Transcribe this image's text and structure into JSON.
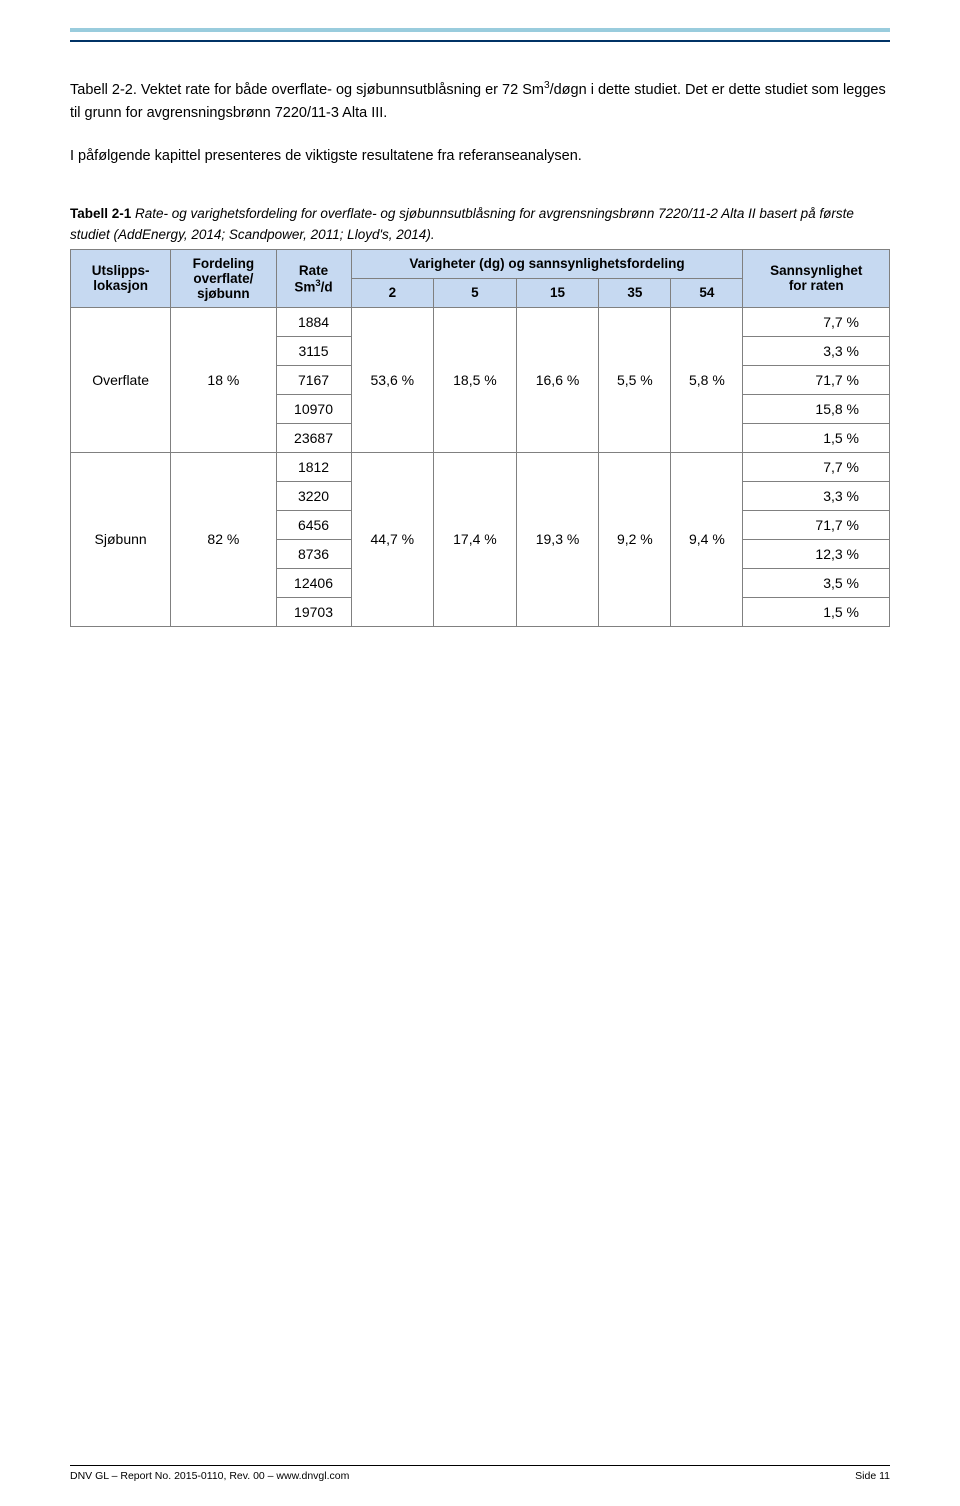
{
  "colors": {
    "header_top_rule": "#99ccdd",
    "header_bottom_rule": "#003366",
    "table_border": "#808080",
    "table_header_bg": "#c6d9f1",
    "text": "#000000",
    "background": "#ffffff"
  },
  "paragraphs": {
    "p1_a": "Tabell 2-2. Vektet rate for både overflate- og sjøbunnsutblåsning er 72 Sm",
    "p1_sup": "3",
    "p1_b": "/døgn i dette studiet. Det er dette studiet som legges til grunn for avgrensningsbrønn 7220/11-3 Alta III.",
    "p2": "I påfølgende kapittel presenteres de viktigste resultatene fra referanseanalysen."
  },
  "caption": {
    "bold": "Tabell 2-1",
    "italic": " Rate- og varighetsfordeling for overflate- og sjøbunnsutblåsning for avgrensningsbrønn 7220/11-2 Alta II basert på første studiet (AddEnergy, 2014; Scandpower, 2011; Lloyd's, 2014)."
  },
  "table": {
    "headers": {
      "col1_line1": "Utslipps-",
      "col1_line2": "lokasjon",
      "col2_line1": "Fordeling",
      "col2_line2": "overflate/",
      "col2_line3": "sjøbunn",
      "col3_line1": "Rate",
      "col3_line2a": "Sm",
      "col3_sup": "3",
      "col3_line2b": "/d",
      "col4_top": "Varigheter (dg) og sannsynlighetsfordeling",
      "col4_sub": [
        "2",
        "5",
        "15",
        "35",
        "54"
      ],
      "col5_line1": "Sannsynlighet",
      "col5_line2": "for raten"
    },
    "groups": [
      {
        "lokasjon": "Overflate",
        "fordeling": "18 %",
        "varigheter": [
          "53,6 %",
          "18,5 %",
          "16,6 %",
          "5,5 %",
          "5,8 %"
        ],
        "rows": [
          {
            "rate": "1884",
            "pct": "7,7 %"
          },
          {
            "rate": "3115",
            "pct": "3,3 %"
          },
          {
            "rate": "7167",
            "pct": "71,7 %"
          },
          {
            "rate": "10970",
            "pct": "15,8 %"
          },
          {
            "rate": "23687",
            "pct": "1,5 %"
          }
        ]
      },
      {
        "lokasjon": "Sjøbunn",
        "fordeling": "82 %",
        "varigheter": [
          "44,7 %",
          "17,4 %",
          "19,3 %",
          "9,2 %",
          "9,4 %"
        ],
        "rows": [
          {
            "rate": "1812",
            "pct": "7,7 %"
          },
          {
            "rate": "3220",
            "pct": "3,3 %"
          },
          {
            "rate": "6456",
            "pct": "71,7 %"
          },
          {
            "rate": "8736",
            "pct": "12,3 %"
          },
          {
            "rate": "12406",
            "pct": "3,5 %"
          },
          {
            "rate": "19703",
            "pct": "1,5 %"
          }
        ]
      }
    ]
  },
  "footer": {
    "left": "DNV GL – Report No. 2015-0110, Rev. 00 – www.dnvgl.com",
    "right": "Side 11"
  }
}
